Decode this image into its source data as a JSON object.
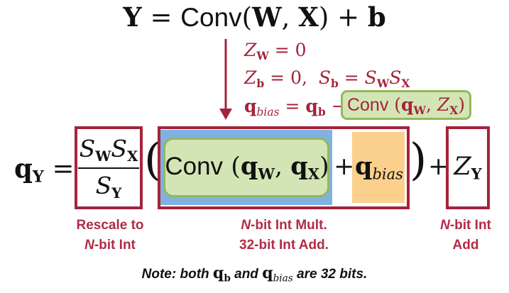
{
  "top_equation": {
    "Y": "Y",
    "equals": "=",
    "conv": "Conv",
    "lparen": "(",
    "W": "W",
    "comma": ",",
    "X": "X",
    "rparen": ")",
    "plus": "+",
    "b": "b"
  },
  "annotations": {
    "line1": {
      "Z": "Z",
      "sub": "W",
      "rest": "= 0"
    },
    "line2": {
      "Z": "Z",
      "sub": "b",
      "mid": "= 0,",
      "S": "S",
      "Ssub": "b",
      "eq": "=",
      "SW": "S",
      "SWsub": "W",
      "SX": "S",
      "SXsub": "X"
    },
    "line3": {
      "q": "q",
      "qsub": "bias",
      "eq": "=",
      "qb": "q",
      "qbsub": "b",
      "minus": "−",
      "conv": "Conv",
      "lp": "(",
      "qw": "q",
      "qwsub": "W",
      "comma": ",",
      "zx": "Z",
      "zxsub": "X",
      "rp": ")"
    }
  },
  "main_equation": {
    "qY": "q",
    "qYsub": "Y",
    "equals": "=",
    "num_S1": "S",
    "num_S1sub": "W",
    "num_S2": "S",
    "num_S2sub": "X",
    "den_S": "S",
    "den_Ssub": "Y",
    "bigLparen": "(",
    "conv": "Conv",
    "lp": "(",
    "qw": "q",
    "qwsub": "W",
    "comma": ",",
    "qx": "q",
    "qxsub": "X",
    "rp": ")",
    "plus": "+",
    "qbias": "q",
    "qbiassub": "bias",
    "bigRparen": ")",
    "plus2": "+",
    "zy": "Z",
    "zysub": "Y"
  },
  "captions": {
    "rescale_line1": "Rescale to",
    "rescale_N": "N",
    "rescale_line2": "-bit Int",
    "mult_N": "N",
    "mult_line1": "-bit Int Mult.",
    "mult_line2": "32-bit Int Add.",
    "add_N": "N",
    "add_line1": "-bit Int",
    "add_line2": "Add"
  },
  "note": {
    "prefix": "Note: both",
    "qb": "q",
    "qbsub": "b",
    "and": "and",
    "qbias": "q",
    "qbiassub": "bias",
    "suffix": "are 32 bits."
  },
  "colors": {
    "accent_red": "#a3243b",
    "green_fill": "#d3e5b5",
    "green_border": "#93b85c",
    "blue_fill": "#7fb2e0",
    "orange_fill": "#fbd08c"
  }
}
